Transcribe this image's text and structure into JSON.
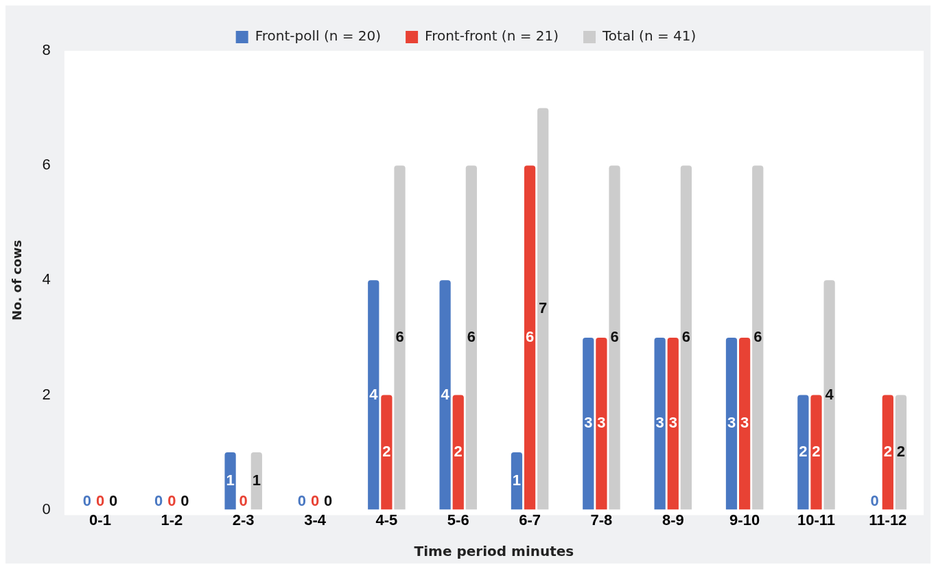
{
  "chart_data": {
    "type": "bar",
    "xlabel": "Time period minutes",
    "ylabel": "No. of cows",
    "categories": [
      "0-1",
      "1-2",
      "2-3",
      "3-4",
      "4-5",
      "5-6",
      "6-7",
      "7-8",
      "8-9",
      "9-10",
      "10-11",
      "11-12"
    ],
    "series": [
      {
        "name": "Front-poll (n = 20)",
        "color": "#4a78c2",
        "values": [
          0,
          0,
          1,
          0,
          4,
          4,
          1,
          3,
          3,
          3,
          2,
          0
        ]
      },
      {
        "name": "Front-front (n = 21)",
        "color": "#e84234",
        "values": [
          0,
          0,
          0,
          0,
          2,
          2,
          6,
          3,
          3,
          3,
          2,
          2
        ]
      },
      {
        "name": "Total (n = 41)",
        "color": "#cccccc",
        "values": [
          0,
          0,
          1,
          0,
          6,
          6,
          7,
          6,
          6,
          6,
          4,
          2
        ]
      }
    ],
    "ylim": [
      0,
      8
    ],
    "yticks": [
      0,
      2,
      4,
      6,
      8
    ],
    "grid": false,
    "legend": "top",
    "data_labels": true
  }
}
